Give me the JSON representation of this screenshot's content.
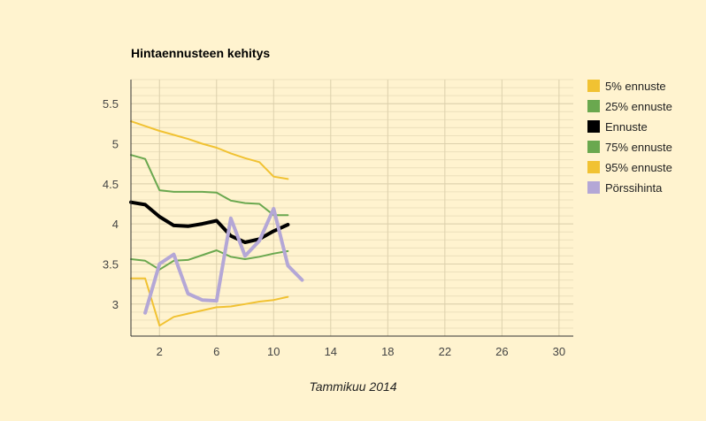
{
  "chart_data": {
    "type": "line",
    "title": "Hintaennusteen kehitys",
    "xlabel": "Tammikuu 2014",
    "ylabel": "",
    "xlim": [
      0,
      31
    ],
    "ylim": [
      2.6,
      5.8
    ],
    "x_ticks": [
      2,
      6,
      10,
      14,
      18,
      22,
      26,
      30
    ],
    "y_ticks": [
      3,
      3.5,
      4,
      4.5,
      5,
      5.5
    ],
    "y_tick_labels": [
      "3",
      "3.5",
      "4",
      "4.5",
      "5",
      "5.5"
    ],
    "grid": true,
    "legend_position": "right",
    "series": [
      {
        "name": "5% ennuste",
        "color": "#f1c232",
        "width": 2,
        "x": [
          0,
          1,
          2,
          3,
          4,
          5,
          6,
          7,
          8,
          9,
          10,
          11
        ],
        "y": [
          3.32,
          3.32,
          2.73,
          2.84,
          2.88,
          2.92,
          2.96,
          2.97,
          3.0,
          3.03,
          3.05,
          3.09
        ]
      },
      {
        "name": "25% ennuste",
        "color": "#6aa84f",
        "width": 2,
        "x": [
          0,
          1,
          2,
          3,
          4,
          5,
          6,
          7,
          8,
          9,
          10,
          11
        ],
        "y": [
          3.56,
          3.54,
          3.43,
          3.54,
          3.55,
          3.61,
          3.67,
          3.59,
          3.56,
          3.59,
          3.63,
          3.66
        ]
      },
      {
        "name": "Ennuste",
        "color": "#000000",
        "width": 4,
        "x": [
          0,
          1,
          2,
          3,
          4,
          5,
          6,
          7,
          8,
          9,
          10,
          11
        ],
        "y": [
          4.27,
          4.24,
          4.09,
          3.98,
          3.97,
          4.0,
          4.04,
          3.85,
          3.77,
          3.81,
          3.91,
          3.99
        ]
      },
      {
        "name": "75% ennuste",
        "color": "#6aa84f",
        "width": 2,
        "x": [
          0,
          1,
          2,
          3,
          4,
          5,
          6,
          7,
          8,
          9,
          10,
          11
        ],
        "y": [
          4.86,
          4.81,
          4.42,
          4.4,
          4.4,
          4.4,
          4.39,
          4.29,
          4.26,
          4.25,
          4.11,
          4.11
        ]
      },
      {
        "name": "95% ennuste",
        "color": "#f1c232",
        "width": 2,
        "x": [
          0,
          1,
          2,
          3,
          4,
          5,
          6,
          7,
          8,
          9,
          10,
          11
        ],
        "y": [
          5.28,
          5.22,
          5.16,
          5.11,
          5.06,
          5.0,
          4.95,
          4.88,
          4.82,
          4.77,
          4.59,
          4.56
        ]
      },
      {
        "name": "Pörssihinta",
        "color": "#b4a7d6",
        "width": 4,
        "x": [
          1,
          2,
          3,
          4,
          5,
          6,
          7,
          8,
          9,
          10,
          11,
          12
        ],
        "y": [
          2.89,
          3.5,
          3.62,
          3.13,
          3.05,
          3.04,
          4.07,
          3.6,
          3.79,
          4.19,
          3.48,
          3.3
        ]
      }
    ]
  }
}
